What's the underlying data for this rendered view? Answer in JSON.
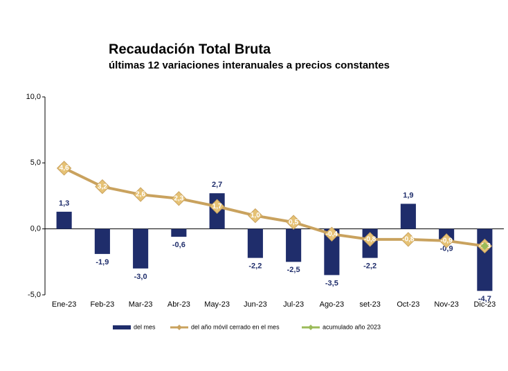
{
  "chart_data": {
    "type": "bar",
    "title": "Recaudación Total Bruta",
    "subtitle": "últimas 12 variaciones interanuales a precios constantes",
    "categories": [
      "Ene-23",
      "Feb-23",
      "Mar-23",
      "Abr-23",
      "May-23",
      "Jun-23",
      "Jul-23",
      "Ago-23",
      "set-23",
      "Oct-23",
      "Nov-23",
      "Dic-23"
    ],
    "series": [
      {
        "name": "del mes",
        "color": "#1f2d6b",
        "type": "bar",
        "values": [
          1.3,
          -1.9,
          -3.0,
          -0.6,
          2.7,
          -2.2,
          -2.5,
          -3.5,
          -2.2,
          1.9,
          -0.9,
          -4.7
        ],
        "value_labels": [
          "1,3",
          "-1,9",
          "-3,0",
          "-0,6",
          "2,7",
          "-2,2",
          "-2,5",
          "-3,5",
          "-2,2",
          "1,9",
          "-0,9",
          "-4,7"
        ]
      },
      {
        "name": "del año móvil cerrado en el mes",
        "color": "#c9a25e",
        "type": "line",
        "values": [
          4.6,
          3.2,
          2.6,
          2.3,
          1.7,
          1.0,
          0.5,
          -0.4,
          -0.8,
          -0.8,
          -0.9,
          -1.3
        ],
        "value_labels": [
          "4,6",
          "3,2",
          "2,6",
          "2,3",
          "1,7",
          "1,0",
          "0,5",
          "-0,4",
          "-0,8",
          "-0,8",
          "-0,9",
          "-1,3"
        ]
      },
      {
        "name": "acumulado año 2023",
        "color": "#9bbb59",
        "type": "line",
        "values": [
          null,
          null,
          null,
          null,
          null,
          null,
          null,
          null,
          null,
          null,
          null,
          -1.3
        ]
      }
    ],
    "ylim": [
      -5,
      10
    ],
    "yticks": [
      {
        "value": -5,
        "label": "-5,0"
      },
      {
        "value": 0,
        "label": "0,0"
      },
      {
        "value": 5,
        "label": "5,0"
      },
      {
        "value": 10,
        "label": "10,0"
      }
    ]
  }
}
